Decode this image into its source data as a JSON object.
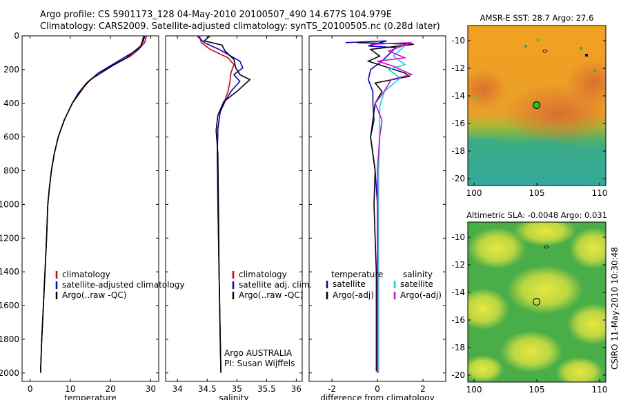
{
  "header": {
    "line1": "Argo profile: CS 5901173_128 04-May-2010 20100507_490 14.677S 104.979E",
    "line2": "Climatology: CARS2009. Satellite-adjusted climatology: synTS_20100505.nc (0.28d later)"
  },
  "footer": {
    "credit": "CSIRO 11-May-2010 10:30:48"
  },
  "chart_data": [
    {
      "id": "temperature",
      "type": "line",
      "xlabel": "temperature",
      "ylabel": "",
      "xlim": [
        -2,
        32
      ],
      "ylim": [
        2050,
        0
      ],
      "xticks": [
        0,
        10,
        20,
        30
      ],
      "yticks": [
        0,
        200,
        400,
        600,
        800,
        1000,
        1200,
        1400,
        1600,
        1800,
        2000
      ],
      "legend": {
        "placement": "lower-middle",
        "items": [
          "climatology",
          "satellite-adjusted climatology",
          "Argo(..raw -QC)"
        ]
      },
      "series": [
        {
          "name": "climatology",
          "color": "#e00000",
          "points": [
            [
              29,
              0
            ],
            [
              28.5,
              40
            ],
            [
              27,
              80
            ],
            [
              25,
              120
            ],
            [
              21,
              170
            ],
            [
              17,
              220
            ],
            [
              14,
              280
            ],
            [
              12,
              340
            ],
            [
              10.5,
              400
            ],
            [
              8.5,
              500
            ],
            [
              7,
              600
            ],
            [
              6,
              700
            ],
            [
              5.3,
              800
            ],
            [
              4.8,
              900
            ],
            [
              4.4,
              1000
            ],
            [
              4.1,
              1200
            ],
            [
              3.7,
              1400
            ],
            [
              3.3,
              1600
            ],
            [
              2.9,
              1800
            ],
            [
              2.6,
              2000
            ]
          ]
        },
        {
          "name": "satellite-adjusted climatology",
          "color": "#0000e0",
          "points": [
            [
              28.6,
              0
            ],
            [
              28,
              40
            ],
            [
              27,
              80
            ],
            [
              24,
              120
            ],
            [
              20.5,
              170
            ],
            [
              17,
              220
            ],
            [
              14.2,
              280
            ],
            [
              12,
              340
            ],
            [
              10.5,
              400
            ],
            [
              8.5,
              500
            ],
            [
              7,
              600
            ],
            [
              6,
              700
            ],
            [
              5.3,
              800
            ],
            [
              4.8,
              900
            ],
            [
              4.4,
              1000
            ],
            [
              4.1,
              1200
            ],
            [
              3.7,
              1400
            ],
            [
              3.3,
              1600
            ],
            [
              2.9,
              1800
            ],
            [
              2.6,
              2000
            ]
          ]
        },
        {
          "name": "Argo(..raw -QC)",
          "color": "#000000",
          "points": [
            [
              28.2,
              0
            ],
            [
              28,
              30
            ],
            [
              27.5,
              60
            ],
            [
              26,
              90
            ],
            [
              24,
              130
            ],
            [
              21,
              170
            ],
            [
              18,
              215
            ],
            [
              15,
              260
            ],
            [
              13.5,
              300
            ],
            [
              12,
              350
            ],
            [
              10.5,
              400
            ],
            [
              8.5,
              500
            ],
            [
              7,
              600
            ],
            [
              6,
              700
            ],
            [
              5.3,
              800
            ],
            [
              4.8,
              900
            ],
            [
              4.4,
              1000
            ],
            [
              4.1,
              1200
            ],
            [
              3.7,
              1400
            ],
            [
              3.3,
              1600
            ],
            [
              2.9,
              1800
            ],
            [
              2.6,
              1990
            ]
          ]
        }
      ]
    },
    {
      "id": "salinity",
      "type": "line",
      "xlabel": "salinity",
      "ylabel": "",
      "xlim": [
        33.8,
        36.1
      ],
      "ylim": [
        2050,
        0
      ],
      "xticks": [
        34,
        34.5,
        35,
        35.5,
        36
      ],
      "yticks": [
        0,
        200,
        400,
        600,
        800,
        1000,
        1200,
        1400,
        1600,
        1800,
        2000
      ],
      "legend": {
        "placement": "lower-middle",
        "items": [
          "climatology",
          "satellite adj. clim.",
          "Argo(..raw -QC)"
        ]
      },
      "annotation": [
        "Argo AUSTRALIA",
        "PI: Susan Wijffels"
      ],
      "series": [
        {
          "name": "climatology",
          "color": "#e00000",
          "points": [
            [
              34.37,
              0
            ],
            [
              34.4,
              40
            ],
            [
              34.55,
              80
            ],
            [
              34.85,
              130
            ],
            [
              34.95,
              170
            ],
            [
              34.9,
              220
            ],
            [
              34.88,
              280
            ],
            [
              34.85,
              330
            ],
            [
              34.8,
              380
            ],
            [
              34.72,
              450
            ],
            [
              34.68,
              550
            ],
            [
              34.67,
              700
            ],
            [
              34.68,
              1000
            ],
            [
              34.7,
              1400
            ],
            [
              34.72,
              1800
            ],
            [
              34.73,
              2000
            ]
          ]
        },
        {
          "name": "satellite adj. clim.",
          "color": "#0000e0",
          "points": [
            [
              34.33,
              0
            ],
            [
              34.45,
              40
            ],
            [
              34.7,
              80
            ],
            [
              35.05,
              150
            ],
            [
              35.1,
              190
            ],
            [
              34.95,
              230
            ],
            [
              35.05,
              270
            ],
            [
              34.9,
              330
            ],
            [
              34.8,
              390
            ],
            [
              34.72,
              450
            ],
            [
              34.68,
              550
            ],
            [
              34.67,
              700
            ],
            [
              34.68,
              1000
            ],
            [
              34.7,
              1400
            ],
            [
              34.72,
              1800
            ],
            [
              34.73,
              2000
            ]
          ]
        },
        {
          "name": "Argo(..raw -QC)",
          "color": "#000000",
          "points": [
            [
              34.55,
              0
            ],
            [
              34.45,
              30
            ],
            [
              34.75,
              55
            ],
            [
              34.8,
              90
            ],
            [
              34.95,
              140
            ],
            [
              34.98,
              190
            ],
            [
              35.05,
              230
            ],
            [
              35.22,
              260
            ],
            [
              35,
              330
            ],
            [
              34.78,
              390
            ],
            [
              34.68,
              470
            ],
            [
              34.65,
              560
            ],
            [
              34.68,
              700
            ],
            [
              34.69,
              1000
            ],
            [
              34.7,
              1400
            ],
            [
              34.72,
              1800
            ],
            [
              34.73,
              1990
            ]
          ]
        }
      ]
    },
    {
      "id": "difference",
      "type": "line",
      "xlabel": "difference from climatology",
      "ylabel": "",
      "xlim": [
        -3,
        3
      ],
      "ylim": [
        2050,
        0
      ],
      "xticks": [
        -2,
        0,
        2
      ],
      "yticks": [
        0,
        200,
        400,
        600,
        800,
        1000,
        1200,
        1400,
        1600,
        1800,
        2000
      ],
      "legend": {
        "placement": "lower-middle",
        "titles": [
          "temperature",
          "salinity"
        ],
        "items": [
          "satellite",
          "Argo(-adj)",
          "satellite",
          "Argo(-adj)"
        ]
      },
      "series": [
        {
          "name": "temperature satellite",
          "color": "#0000e0",
          "points": [
            [
              -1.4,
              40
            ],
            [
              0.4,
              30
            ],
            [
              -0.4,
              60
            ],
            [
              0.8,
              70
            ],
            [
              0.2,
              150
            ],
            [
              -0.3,
              200
            ],
            [
              -0.4,
              260
            ],
            [
              -0.2,
              330
            ],
            [
              -0.2,
              400
            ],
            [
              -0.15,
              500
            ],
            [
              -0.3,
              600
            ],
            [
              -0.1,
              800
            ],
            [
              0,
              1000
            ],
            [
              0,
              2000
            ]
          ]
        },
        {
          "name": "temperature Argo(-adj)",
          "color": "#000000",
          "points": [
            [
              -0.9,
              40
            ],
            [
              1.6,
              50
            ],
            [
              -0.3,
              80
            ],
            [
              0.1,
              120
            ],
            [
              -0.4,
              150
            ],
            [
              1.2,
              220
            ],
            [
              1.4,
              240
            ],
            [
              -0.1,
              280
            ],
            [
              0.2,
              330
            ],
            [
              -0.1,
              400
            ],
            [
              -0.2,
              500
            ],
            [
              -0.3,
              600
            ],
            [
              -0.1,
              800
            ],
            [
              -0.15,
              1000
            ],
            [
              -0.05,
              1400
            ],
            [
              -0.05,
              1800
            ],
            [
              -0.05,
              1990
            ]
          ]
        },
        {
          "name": "salinity satellite",
          "color": "#00dddd",
          "points": [
            [
              1.2,
              60
            ],
            [
              0.7,
              120
            ],
            [
              1.2,
              170
            ],
            [
              0.5,
              200
            ],
            [
              1.0,
              250
            ],
            [
              0.3,
              330
            ],
            [
              0.1,
              420
            ],
            [
              0.1,
              600
            ],
            [
              0.05,
              800
            ],
            [
              0.05,
              1000
            ],
            [
              0.05,
              2000
            ]
          ]
        },
        {
          "name": "salinity Argo(-adj)",
          "color": "#e000e0",
          "points": [
            [
              -0.3,
              50
            ],
            [
              1.5,
              40
            ],
            [
              0.5,
              90
            ],
            [
              1.2,
              130
            ],
            [
              0,
              150
            ],
            [
              0.7,
              180
            ],
            [
              1.5,
              230
            ],
            [
              0.6,
              260
            ],
            [
              0.3,
              330
            ],
            [
              -0.1,
              400
            ],
            [
              0.2,
              500
            ],
            [
              0.1,
              600
            ],
            [
              0,
              800
            ],
            [
              0,
              1000
            ],
            [
              0,
              1400
            ],
            [
              0,
              2000
            ]
          ]
        }
      ]
    },
    {
      "id": "sst",
      "type": "heatmap",
      "title": "AMSR-E SST: 28.7 Argo: 27.6",
      "xticks": [
        100,
        105,
        110
      ],
      "yticks": [
        -10,
        -12,
        -14,
        -16,
        -18,
        -20
      ],
      "xlim": [
        99.5,
        110.5
      ],
      "ylim": [
        -20.5,
        -8.9
      ],
      "marker": {
        "lon": 104.979,
        "lat": -14.677
      },
      "colors": {
        "warm": "#f0a020",
        "hot": "#d86a30",
        "cool": "#2aa8a0",
        "mid": "#b8c030"
      }
    },
    {
      "id": "sla",
      "type": "heatmap",
      "title": "Altimetric SLA: -0.0048 Argo: 0.031",
      "xticks": [
        100,
        105,
        110
      ],
      "yticks": [
        -10,
        -12,
        -14,
        -16,
        -18,
        -20
      ],
      "xlim": [
        99.5,
        110.5
      ],
      "ylim": [
        -20.5,
        -8.9
      ],
      "marker": {
        "lon": 104.979,
        "lat": -14.677
      },
      "colors": {
        "low": "#48b048",
        "high": "#e8e840"
      }
    }
  ]
}
